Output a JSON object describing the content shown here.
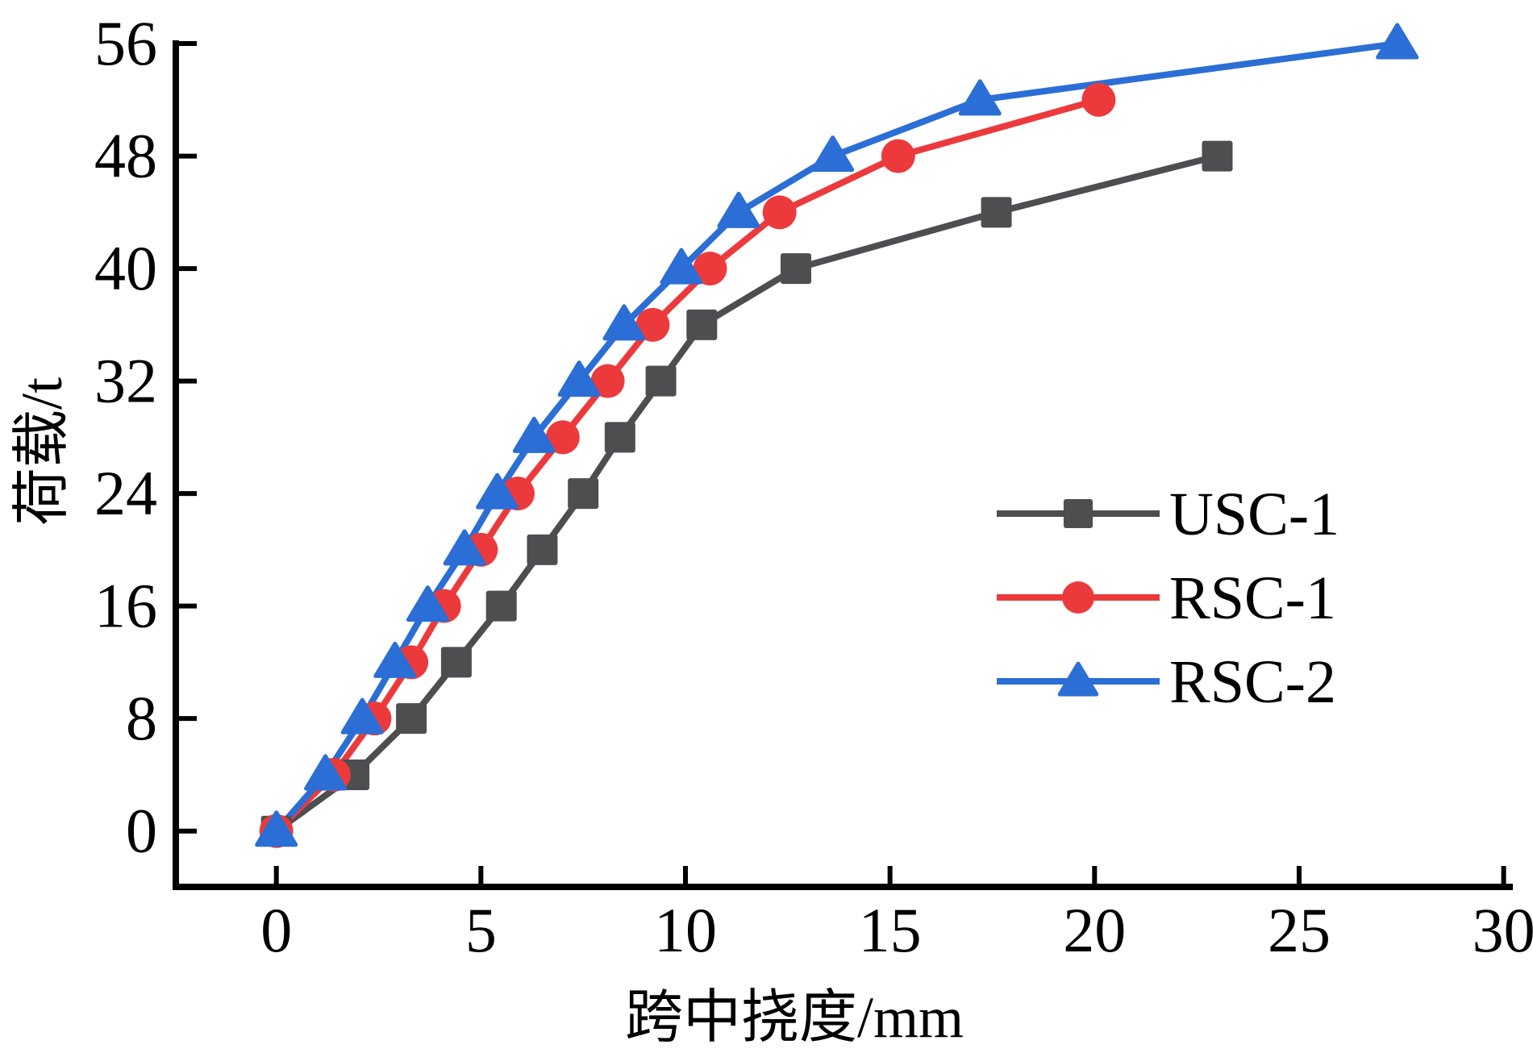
{
  "chart_data": {
    "type": "line",
    "title": "",
    "xlabel": "跨中挠度/mm",
    "ylabel": "荷载/t",
    "xlim": [
      0,
      30
    ],
    "ylim": [
      0,
      56
    ],
    "x_ticks": [
      0,
      5,
      10,
      15,
      20,
      25,
      30
    ],
    "y_ticks": [
      0,
      8,
      16,
      24,
      32,
      40,
      48,
      56
    ],
    "grid": false,
    "legend_position": "right-middle",
    "axis_color": "#000000",
    "series": [
      {
        "name": "USC-1",
        "color": "#4e4e50",
        "marker": "square",
        "points": [
          [
            0,
            0
          ],
          [
            1.9,
            4
          ],
          [
            3.3,
            8
          ],
          [
            4.4,
            12
          ],
          [
            5.5,
            16
          ],
          [
            6.5,
            20
          ],
          [
            7.5,
            24
          ],
          [
            8.4,
            28
          ],
          [
            9.4,
            32
          ],
          [
            10.4,
            36
          ],
          [
            12.7,
            40
          ],
          [
            17.6,
            44
          ],
          [
            23.0,
            48
          ]
        ]
      },
      {
        "name": "RSC-1",
        "color": "#ec3a3c",
        "marker": "circle",
        "points": [
          [
            0,
            0
          ],
          [
            1.4,
            4
          ],
          [
            2.4,
            8
          ],
          [
            3.3,
            12
          ],
          [
            4.1,
            16
          ],
          [
            5.0,
            20
          ],
          [
            5.9,
            24
          ],
          [
            7.0,
            28
          ],
          [
            8.1,
            32
          ],
          [
            9.2,
            36
          ],
          [
            10.6,
            40
          ],
          [
            12.3,
            44
          ],
          [
            15.2,
            48
          ],
          [
            20.1,
            52
          ]
        ]
      },
      {
        "name": "RSC-2",
        "color": "#2b6ed5",
        "marker": "triangle",
        "points": [
          [
            0,
            0
          ],
          [
            1.2,
            4
          ],
          [
            2.1,
            8
          ],
          [
            2.9,
            12
          ],
          [
            3.7,
            16
          ],
          [
            4.6,
            20
          ],
          [
            5.4,
            24
          ],
          [
            6.3,
            28
          ],
          [
            7.4,
            32
          ],
          [
            8.5,
            36
          ],
          [
            9.9,
            40
          ],
          [
            11.3,
            44
          ],
          [
            13.6,
            48
          ],
          [
            17.2,
            52
          ],
          [
            27.4,
            56
          ]
        ]
      }
    ],
    "legend_entries": [
      "USC-1",
      "RSC-1",
      "RSC-2"
    ]
  }
}
